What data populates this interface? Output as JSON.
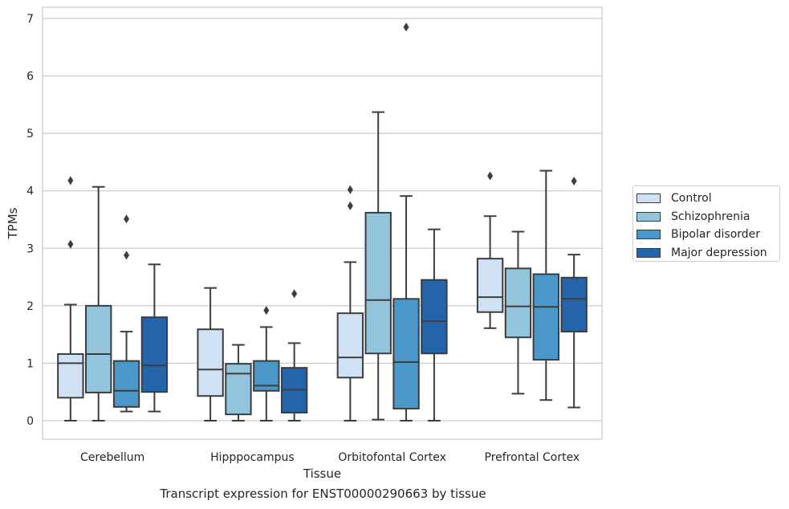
{
  "chart_data": {
    "type": "box",
    "caption": "Transcript expression for ENST00000290663 by tissue",
    "xlabel": "Tissue",
    "ylabel": "TPMs",
    "ylim": [
      -0.33,
      7.2
    ],
    "yticks": [
      0,
      1,
      2,
      3,
      4,
      5,
      6,
      7
    ],
    "grid": true,
    "legend_position": "right",
    "categories": [
      "Cerebellum",
      "Hipppocampus",
      "Orbitofontal Cortex",
      "Prefrontal Cortex"
    ],
    "series": [
      {
        "name": "Control",
        "color": "#cfe1f2",
        "boxes": [
          {
            "whislo": 0.0,
            "q1": 0.4,
            "med": 1.0,
            "q3": 1.16,
            "whishi": 2.02,
            "fliers": [
              3.07,
              4.18
            ]
          },
          {
            "whislo": 0.0,
            "q1": 0.43,
            "med": 0.89,
            "q3": 1.59,
            "whishi": 2.31,
            "fliers": []
          },
          {
            "whislo": 0.0,
            "q1": 0.75,
            "med": 1.1,
            "q3": 1.87,
            "whishi": 2.76,
            "fliers": [
              3.74,
              4.02
            ]
          },
          {
            "whislo": 1.61,
            "q1": 1.89,
            "med": 2.15,
            "q3": 2.82,
            "whishi": 3.56,
            "fliers": [
              4.26
            ]
          }
        ]
      },
      {
        "name": "Schizophrenia",
        "color": "#93c4de",
        "boxes": [
          {
            "whislo": 0.0,
            "q1": 0.49,
            "med": 1.16,
            "q3": 2.0,
            "whishi": 4.07,
            "fliers": []
          },
          {
            "whislo": 0.0,
            "q1": 0.11,
            "med": 0.82,
            "q3": 0.99,
            "whishi": 1.32,
            "fliers": []
          },
          {
            "whislo": 0.02,
            "q1": 1.17,
            "med": 2.1,
            "q3": 3.62,
            "whishi": 5.37,
            "fliers": []
          },
          {
            "whislo": 0.47,
            "q1": 1.45,
            "med": 1.99,
            "q3": 2.65,
            "whishi": 3.29,
            "fliers": []
          }
        ]
      },
      {
        "name": "Bipolar disorder",
        "color": "#4a98c9",
        "boxes": [
          {
            "whislo": 0.16,
            "q1": 0.24,
            "med": 0.52,
            "q3": 1.04,
            "whishi": 1.55,
            "fliers": [
              2.88,
              3.51
            ]
          },
          {
            "whislo": 0.0,
            "q1": 0.52,
            "med": 0.61,
            "q3": 1.04,
            "whishi": 1.63,
            "fliers": [
              1.92
            ]
          },
          {
            "whislo": 0.0,
            "q1": 0.21,
            "med": 1.02,
            "q3": 2.12,
            "whishi": 3.91,
            "fliers": [
              6.85
            ]
          },
          {
            "whislo": 0.36,
            "q1": 1.06,
            "med": 1.98,
            "q3": 2.55,
            "whishi": 4.35,
            "fliers": []
          }
        ]
      },
      {
        "name": "Major depression",
        "color": "#2464ab",
        "boxes": [
          {
            "whislo": 0.16,
            "q1": 0.5,
            "med": 0.96,
            "q3": 1.8,
            "whishi": 2.72,
            "fliers": []
          },
          {
            "whislo": 0.0,
            "q1": 0.14,
            "med": 0.54,
            "q3": 0.92,
            "whishi": 1.35,
            "fliers": [
              2.21
            ]
          },
          {
            "whislo": 0.0,
            "q1": 1.17,
            "med": 1.73,
            "q3": 2.45,
            "whishi": 3.33,
            "fliers": []
          },
          {
            "whislo": 0.23,
            "q1": 1.55,
            "med": 2.12,
            "q3": 2.49,
            "whishi": 2.89,
            "fliers": [
              4.17
            ]
          }
        ]
      }
    ]
  }
}
